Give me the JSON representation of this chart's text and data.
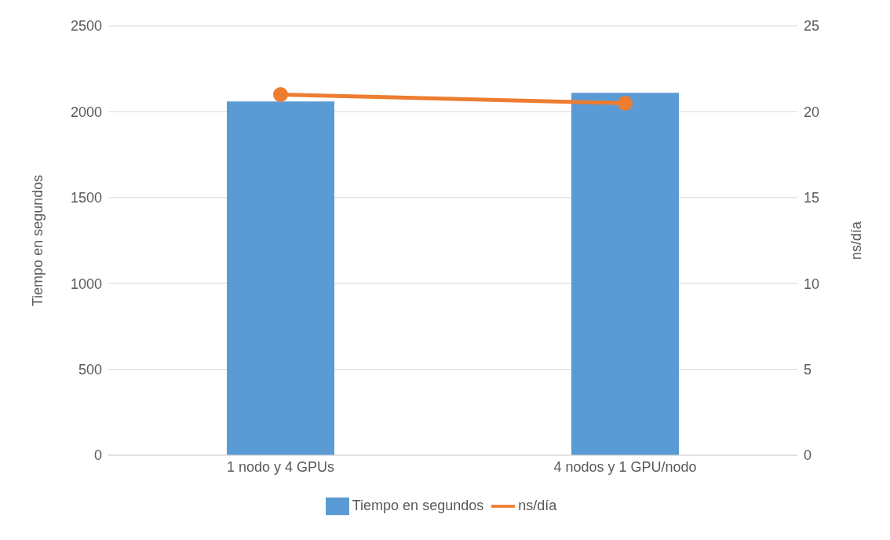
{
  "chart_data": {
    "type": "bar",
    "categories": [
      "1 nodo y 4 GPUs",
      "4 nodos y 1 GPU/nodo"
    ],
    "series": [
      {
        "name": "Tiempo en segundos",
        "color": "#5b9bd5",
        "values": [
          2060,
          2110
        ]
      },
      {
        "name": "ns/día",
        "type": "line",
        "axis": "y2",
        "color": "#ed7d31",
        "values": [
          21.0,
          20.5
        ],
        "marker": "circle"
      }
    ],
    "ylabel": "Tiempo en segundos",
    "y2label": "ns/día",
    "ylim": [
      0,
      2500
    ],
    "yticks": [
      0,
      500,
      1000,
      1500,
      2000,
      2500
    ],
    "y2lim": [
      0,
      25
    ],
    "y2ticks": [
      0,
      5,
      10,
      15,
      20,
      25
    ],
    "grid": "y",
    "legend": "bottom"
  }
}
